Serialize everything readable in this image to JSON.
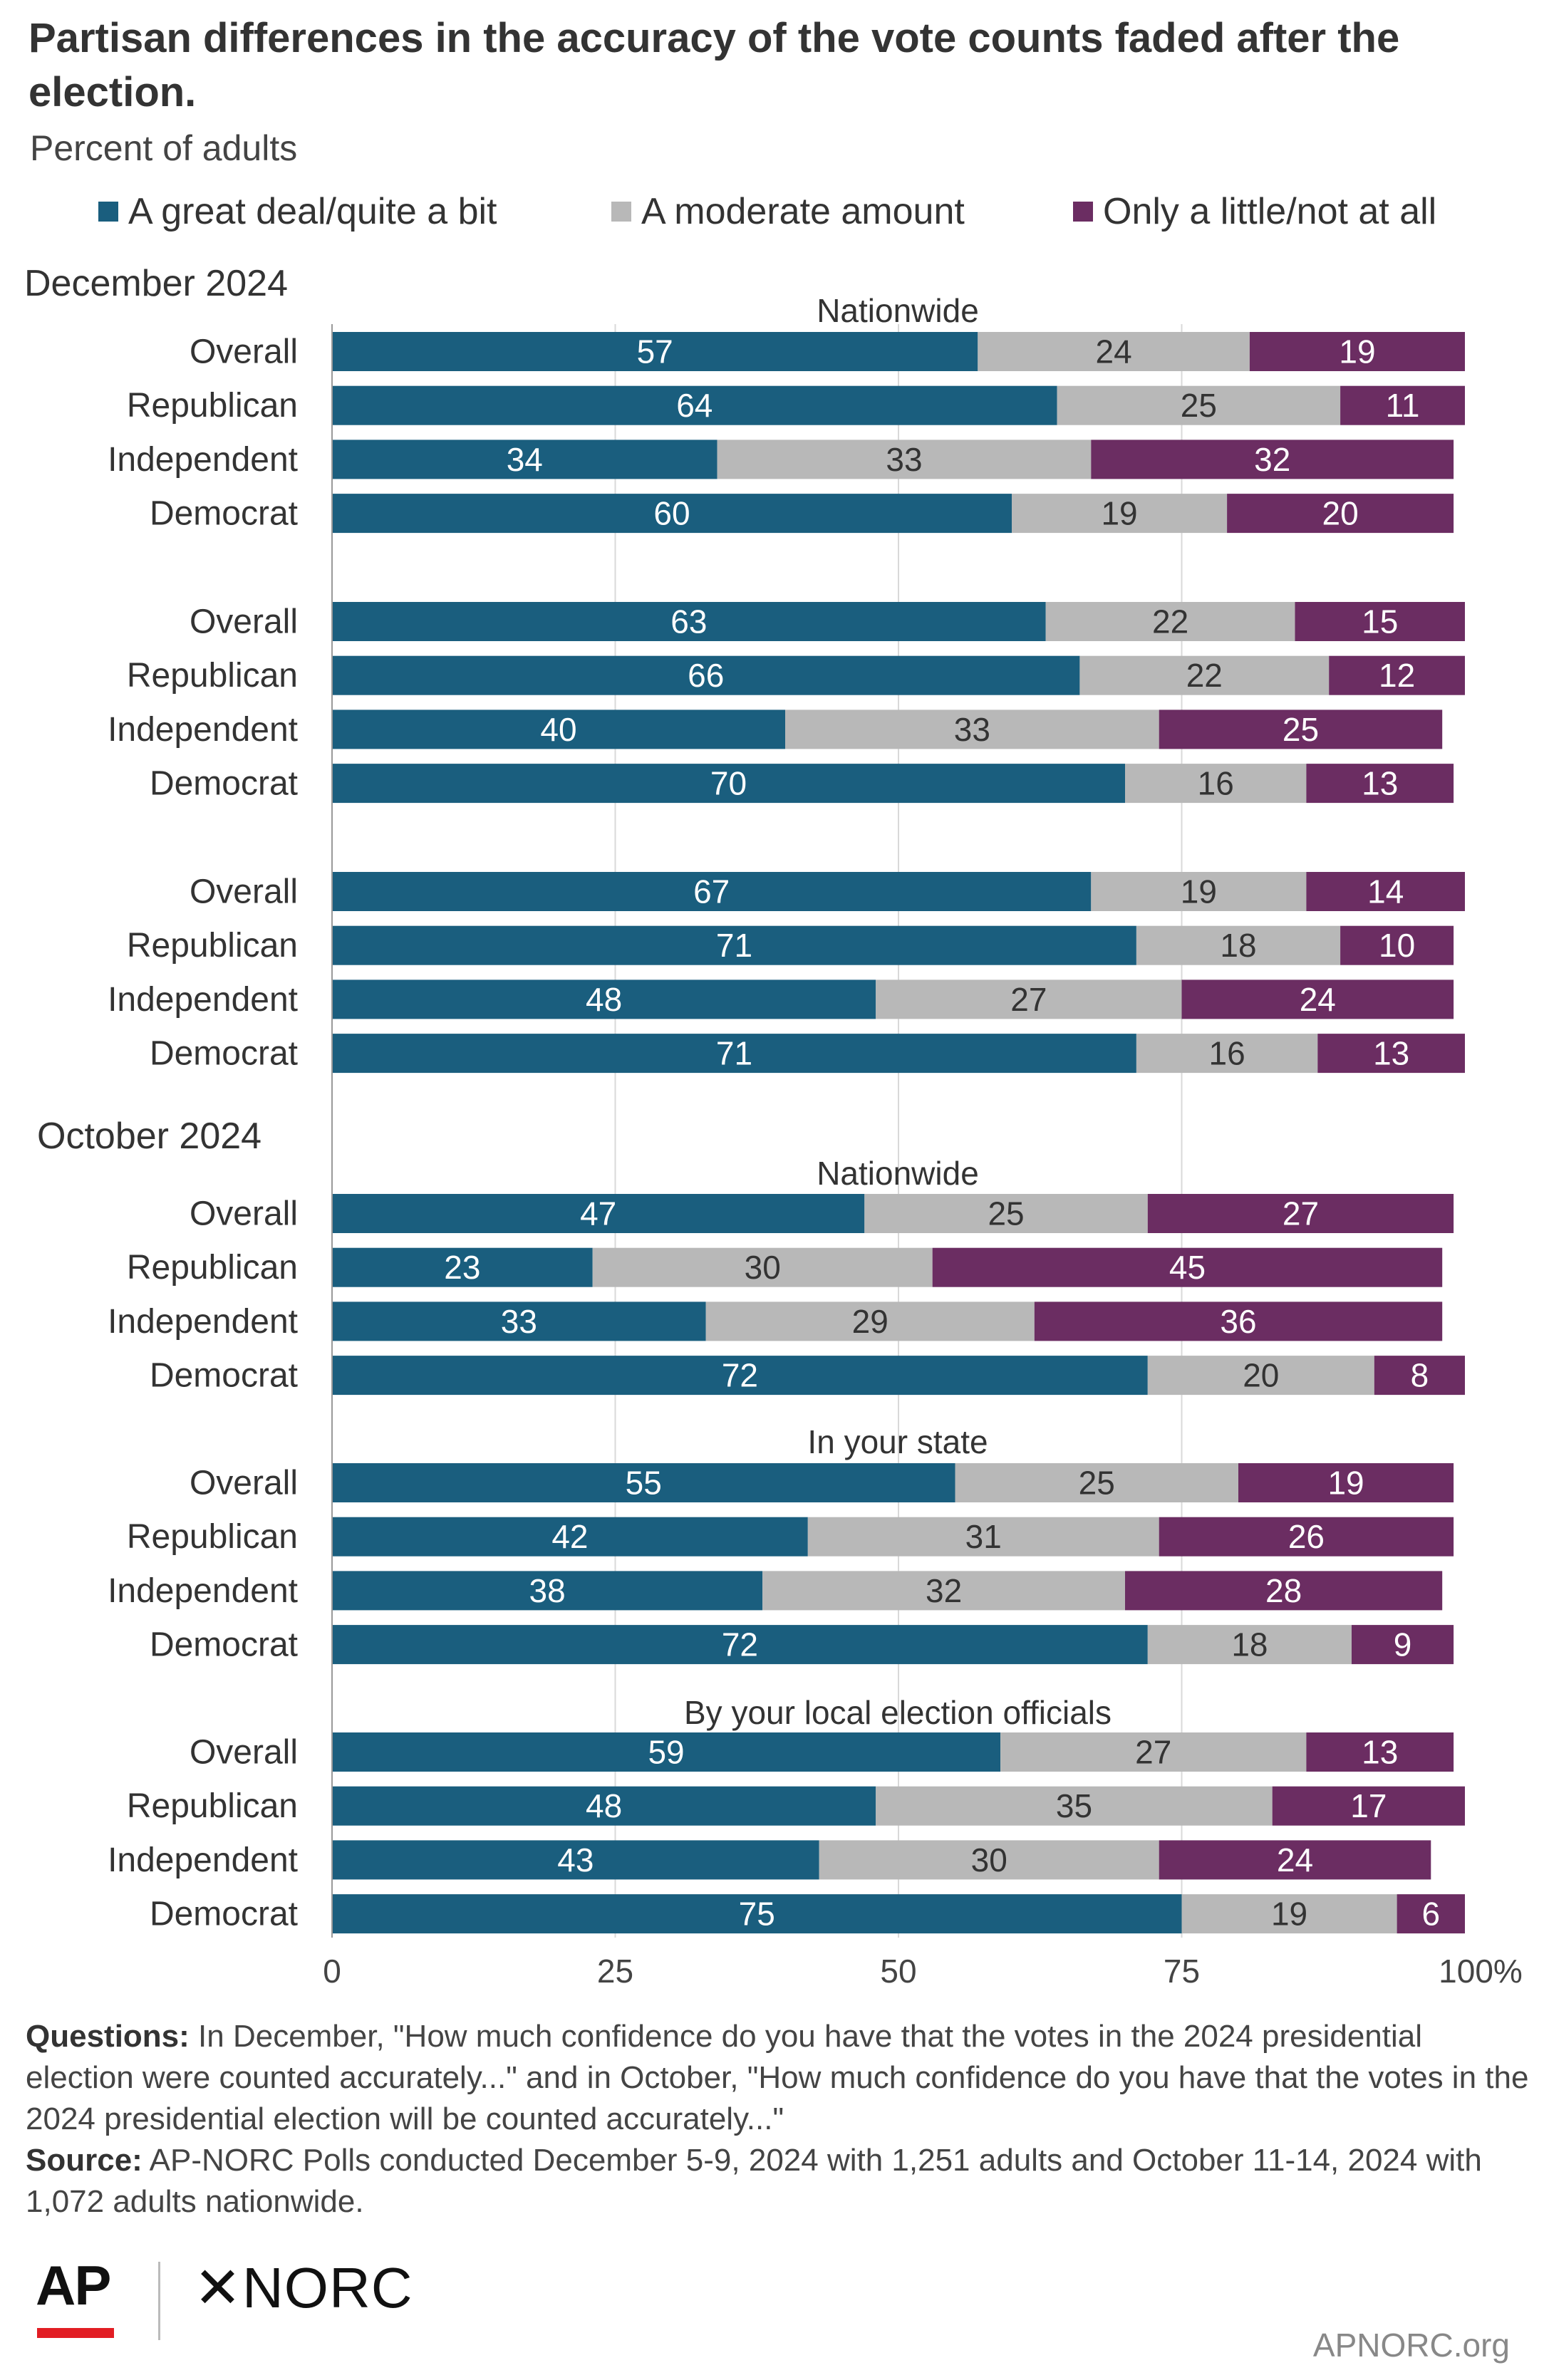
{
  "title": "Partisan differences in the accuracy of the vote counts faded after the election.",
  "subtitle": "Percent of adults",
  "colors": {
    "great_deal": "#1a5e7e",
    "moderate": "#b8b8b8",
    "little": "#6b2d62",
    "gridline": "#d9d9d9",
    "ap_red": "#e21d24"
  },
  "legend": [
    {
      "label": "A great deal/quite a bit",
      "color": "#1a5e7e"
    },
    {
      "label": "A moderate amount",
      "color": "#b8b8b8"
    },
    {
      "label": "Only a little/not at all",
      "color": "#6b2d62"
    }
  ],
  "chart_data": {
    "type": "bar",
    "orientation": "horizontal",
    "stacked": true,
    "series_names": [
      "A great deal/quite a bit",
      "A moderate amount",
      "Only a little/not at all"
    ],
    "xlim": [
      0,
      100
    ],
    "x_ticks": [
      "0",
      "25",
      "50",
      "75",
      "100%"
    ],
    "grid": true,
    "legend_position": "top",
    "periods": [
      {
        "label": "December 2024",
        "groups": [
          {
            "label": "Nationwide",
            "rows": [
              {
                "label": "Overall",
                "values": [
                  57,
                  24,
                  19
                ]
              },
              {
                "label": "Republican",
                "values": [
                  64,
                  25,
                  11
                ]
              },
              {
                "label": "Independent",
                "values": [
                  34,
                  33,
                  32
                ]
              },
              {
                "label": "Democrat",
                "values": [
                  60,
                  19,
                  20
                ]
              }
            ]
          },
          {
            "label": "",
            "rows": [
              {
                "label": "Overall",
                "values": [
                  63,
                  22,
                  15
                ]
              },
              {
                "label": "Republican",
                "values": [
                  66,
                  22,
                  12
                ]
              },
              {
                "label": "Independent",
                "values": [
                  40,
                  33,
                  25
                ]
              },
              {
                "label": "Democrat",
                "values": [
                  70,
                  16,
                  13
                ]
              }
            ]
          },
          {
            "label": "",
            "rows": [
              {
                "label": "Overall",
                "values": [
                  67,
                  19,
                  14
                ]
              },
              {
                "label": "Republican",
                "values": [
                  71,
                  18,
                  10
                ]
              },
              {
                "label": "Independent",
                "values": [
                  48,
                  27,
                  24
                ]
              },
              {
                "label": "Democrat",
                "values": [
                  71,
                  16,
                  13
                ]
              }
            ]
          }
        ]
      },
      {
        "label": "October 2024",
        "groups": [
          {
            "label": "Nationwide",
            "rows": [
              {
                "label": "Overall",
                "values": [
                  47,
                  25,
                  27
                ]
              },
              {
                "label": "Republican",
                "values": [
                  23,
                  30,
                  45
                ]
              },
              {
                "label": "Independent",
                "values": [
                  33,
                  29,
                  36
                ]
              },
              {
                "label": "Democrat",
                "values": [
                  72,
                  20,
                  8
                ]
              }
            ]
          },
          {
            "label": "In your state",
            "rows": [
              {
                "label": "Overall",
                "values": [
                  55,
                  25,
                  19
                ]
              },
              {
                "label": "Republican",
                "values": [
                  42,
                  31,
                  26
                ]
              },
              {
                "label": "Independent",
                "values": [
                  38,
                  32,
                  28
                ]
              },
              {
                "label": "Democrat",
                "values": [
                  72,
                  18,
                  9
                ]
              }
            ]
          },
          {
            "label": "By your local election officials",
            "rows": [
              {
                "label": "Overall",
                "values": [
                  59,
                  27,
                  13
                ]
              },
              {
                "label": "Republican",
                "values": [
                  48,
                  35,
                  17
                ]
              },
              {
                "label": "Independent",
                "values": [
                  43,
                  30,
                  24
                ]
              },
              {
                "label": "Democrat",
                "values": [
                  75,
                  19,
                  6
                ]
              }
            ]
          }
        ]
      }
    ]
  },
  "notes": {
    "questions_label": "Questions:",
    "questions_text": " In December, \"How much confidence do you have that the votes in the 2024 presidential election were counted accurately...\" and in October, \"How much confidence do you have that the votes in the 2024 presidential election will be counted accurately...\"",
    "source_label": "Source:",
    "source_text": " AP-NORC Polls conducted December 5-9, 2024 with 1,251 adults and October 11-14, 2024 with 1,072 adults nationwide."
  },
  "branding": {
    "ap": "AP",
    "norc": "NORC",
    "norc_mark": "✕",
    "site": "APNORC.org"
  }
}
